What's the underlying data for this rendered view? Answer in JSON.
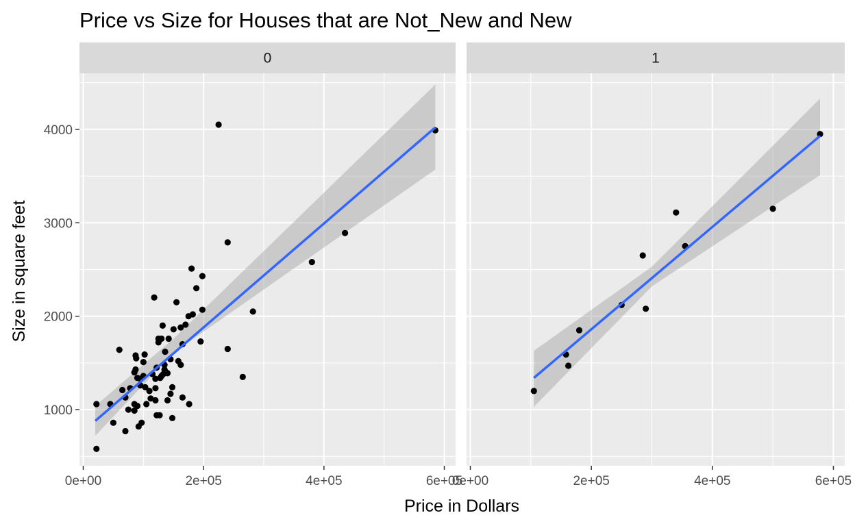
{
  "chart_data": {
    "type": "scatter",
    "title": "Price vs Size for Houses that are Not_New and New",
    "xlabel": "Price in Dollars",
    "ylabel": "Size in square feet",
    "xlim": [
      0,
      600000
    ],
    "ylim": [
      400,
      4600
    ],
    "x_ticks": [
      0,
      200000,
      400000,
      600000
    ],
    "x_tick_labels": [
      "0e+00",
      "2e+05",
      "4e+05",
      "6e+05"
    ],
    "y_ticks": [
      1000,
      2000,
      3000,
      4000
    ],
    "y_tick_labels": [
      "1000",
      "2000",
      "3000",
      "4000"
    ],
    "grid": true,
    "smoother": "linear fit with confidence band",
    "colors": {
      "panel_bg": "#ebebeb",
      "grid": "#ffffff",
      "strip_bg": "#d9d9d9",
      "point": "#000000",
      "line": "#3366ff",
      "band": "#999999"
    },
    "panels": [
      {
        "label": "0",
        "fit": {
          "x": [
            20000,
            585000
          ],
          "y": [
            880,
            4020
          ]
        },
        "band": {
          "x": [
            20000,
            150000,
            585000
          ],
          "lower": [
            720,
            1610,
            3570
          ],
          "upper": [
            1040,
            1760,
            4480
          ]
        },
        "points": [
          [
            22000,
            580
          ],
          [
            22000,
            1060
          ],
          [
            45000,
            1060
          ],
          [
            50000,
            860
          ],
          [
            60000,
            1640
          ],
          [
            65000,
            1210
          ],
          [
            70000,
            770
          ],
          [
            70000,
            1130
          ],
          [
            75000,
            1000
          ],
          [
            78000,
            1230
          ],
          [
            85000,
            990
          ],
          [
            85000,
            1060
          ],
          [
            85000,
            1400
          ],
          [
            87000,
            1430
          ],
          [
            87000,
            1580
          ],
          [
            88000,
            1550
          ],
          [
            90000,
            1340
          ],
          [
            90000,
            1040
          ],
          [
            92000,
            820
          ],
          [
            95000,
            1260
          ],
          [
            95000,
            1330
          ],
          [
            97000,
            860
          ],
          [
            100000,
            1360
          ],
          [
            100000,
            1510
          ],
          [
            102000,
            1590
          ],
          [
            103000,
            1240
          ],
          [
            105000,
            1060
          ],
          [
            110000,
            1200
          ],
          [
            112000,
            1120
          ],
          [
            115000,
            1380
          ],
          [
            118000,
            2200
          ],
          [
            120000,
            1100
          ],
          [
            120000,
            1230
          ],
          [
            120000,
            1330
          ],
          [
            122000,
            1450
          ],
          [
            122000,
            940
          ],
          [
            125000,
            1720
          ],
          [
            125000,
            1760
          ],
          [
            127000,
            940
          ],
          [
            128000,
            1340
          ],
          [
            130000,
            1360
          ],
          [
            130000,
            1760
          ],
          [
            132000,
            1900
          ],
          [
            133000,
            1380
          ],
          [
            135000,
            1480
          ],
          [
            135000,
            1430
          ],
          [
            136000,
            1620
          ],
          [
            138000,
            1400
          ],
          [
            140000,
            1100
          ],
          [
            140000,
            1390
          ],
          [
            142000,
            1760
          ],
          [
            145000,
            1170
          ],
          [
            145000,
            1540
          ],
          [
            148000,
            1240
          ],
          [
            148000,
            910
          ],
          [
            150000,
            1860
          ],
          [
            155000,
            2150
          ],
          [
            158000,
            1520
          ],
          [
            162000,
            1480
          ],
          [
            162000,
            1880
          ],
          [
            165000,
            1700
          ],
          [
            165000,
            1130
          ],
          [
            170000,
            1910
          ],
          [
            175000,
            2000
          ],
          [
            176000,
            1060
          ],
          [
            180000,
            2510
          ],
          [
            182000,
            2020
          ],
          [
            188000,
            2300
          ],
          [
            195000,
            1730
          ],
          [
            198000,
            2430
          ],
          [
            198000,
            2070
          ],
          [
            225000,
            4050
          ],
          [
            240000,
            2790
          ],
          [
            240000,
            1650
          ],
          [
            265000,
            1350
          ],
          [
            282000,
            2050
          ],
          [
            380000,
            2580
          ],
          [
            435000,
            2890
          ],
          [
            585000,
            3990
          ]
        ]
      },
      {
        "label": "1",
        "fit": {
          "x": [
            105000,
            578000
          ],
          "y": [
            1340,
            3930
          ]
        },
        "band": {
          "x": [
            105000,
            300000,
            578000
          ],
          "lower": [
            1030,
            2320,
            3510
          ],
          "upper": [
            1630,
            2530,
            4330
          ]
        },
        "points": [
          [
            105000,
            1200
          ],
          [
            158000,
            1590
          ],
          [
            162000,
            1470
          ],
          [
            180000,
            1850
          ],
          [
            250000,
            2120
          ],
          [
            285000,
            2650
          ],
          [
            290000,
            2080
          ],
          [
            340000,
            3110
          ],
          [
            355000,
            2750
          ],
          [
            500000,
            3150
          ],
          [
            578000,
            3950
          ]
        ]
      }
    ]
  }
}
